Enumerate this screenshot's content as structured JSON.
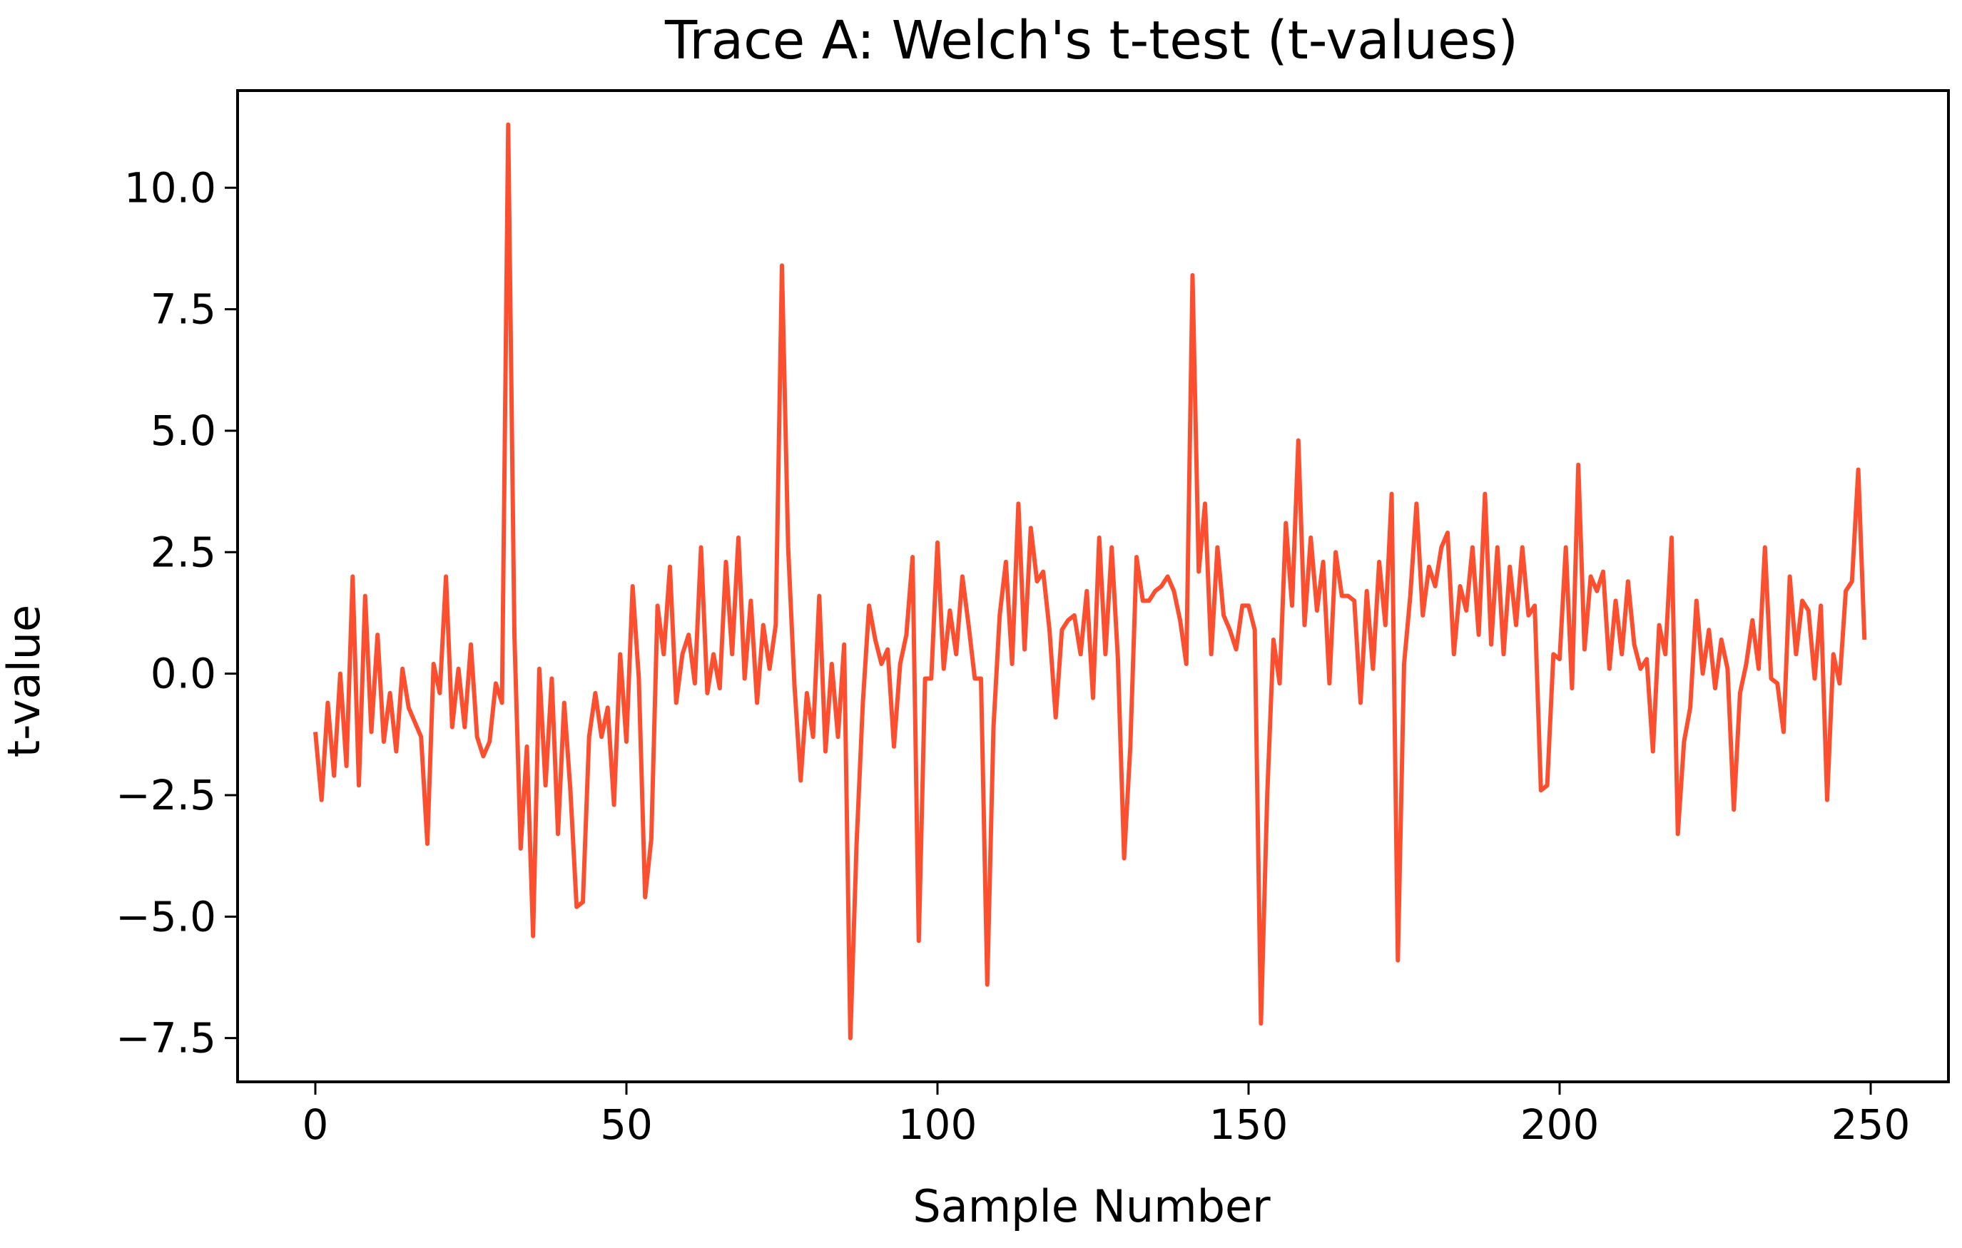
{
  "chart_data": {
    "type": "line",
    "title": "Trace A: Welch's t-test (t-values)",
    "xlabel": "Sample Number",
    "ylabel": "t-value",
    "xlim": [
      -12.5,
      262.5
    ],
    "ylim": [
      -8.4,
      12.0
    ],
    "xticks": [
      0,
      50,
      100,
      150,
      200,
      250
    ],
    "xtick_labels": [
      "0",
      "50",
      "100",
      "150",
      "200",
      "250"
    ],
    "yticks": [
      -7.5,
      -5.0,
      -2.5,
      0.0,
      2.5,
      5.0,
      7.5,
      10.0
    ],
    "ytick_labels": [
      "−7.5",
      "−5.0",
      "−2.5",
      "0.0",
      "2.5",
      "5.0",
      "7.5",
      "10.0"
    ],
    "grid": false,
    "series": [
      {
        "color": "#fc4f30",
        "x": [
          0,
          1,
          2,
          3,
          4,
          5,
          6,
          7,
          8,
          9,
          10,
          11,
          12,
          13,
          14,
          15,
          16,
          17,
          18,
          19,
          20,
          21,
          22,
          23,
          24,
          25,
          26,
          27,
          28,
          29,
          30,
          31,
          32,
          33,
          34,
          35,
          36,
          37,
          38,
          39,
          40,
          41,
          42,
          43,
          44,
          45,
          46,
          47,
          48,
          49,
          50,
          51,
          52,
          53,
          54,
          55,
          56,
          57,
          58,
          59,
          60,
          61,
          62,
          63,
          64,
          65,
          66,
          67,
          68,
          69,
          70,
          71,
          72,
          73,
          74,
          75,
          76,
          77,
          78,
          79,
          80,
          81,
          82,
          83,
          84,
          85,
          86,
          87,
          88,
          89,
          90,
          91,
          92,
          93,
          94,
          95,
          96,
          97,
          98,
          99,
          100,
          101,
          102,
          103,
          104,
          105,
          106,
          107,
          108,
          109,
          110,
          111,
          112,
          113,
          114,
          115,
          116,
          117,
          118,
          119,
          120,
          121,
          122,
          123,
          124,
          125,
          126,
          127,
          128,
          129,
          130,
          131,
          132,
          133,
          134,
          135,
          136,
          137,
          138,
          139,
          140,
          141,
          142,
          143,
          144,
          145,
          146,
          147,
          148,
          149,
          150,
          151,
          152,
          153,
          154,
          155,
          156,
          157,
          158,
          159,
          160,
          161,
          162,
          163,
          164,
          165,
          166,
          167,
          168,
          169,
          170,
          171,
          172,
          173,
          174,
          175,
          176,
          177,
          178,
          179,
          180,
          181,
          182,
          183,
          184,
          185,
          186,
          187,
          188,
          189,
          190,
          191,
          192,
          193,
          194,
          195,
          196,
          197,
          198,
          199,
          200,
          201,
          202,
          203,
          204,
          205,
          206,
          207,
          208,
          209,
          210,
          211,
          212,
          213,
          214,
          215,
          216,
          217,
          218,
          219,
          220,
          221,
          222,
          223,
          224,
          225,
          226,
          227,
          228,
          229,
          230,
          231,
          232,
          233,
          234,
          235,
          236,
          237,
          238,
          239,
          240,
          241,
          242,
          243,
          244,
          245,
          246,
          247,
          248,
          249
        ],
        "values": [
          -1.2,
          -2.6,
          -0.6,
          -2.1,
          0.0,
          -1.9,
          2.0,
          -2.3,
          1.6,
          -1.2,
          0.8,
          -1.4,
          -0.4,
          -1.6,
          0.1,
          -0.7,
          -1.0,
          -1.3,
          -3.5,
          0.2,
          -0.4,
          2.0,
          -1.1,
          0.1,
          -1.1,
          0.6,
          -1.3,
          -1.7,
          -1.4,
          -0.2,
          -0.6,
          11.3,
          0.8,
          -3.6,
          -1.5,
          -5.4,
          0.1,
          -2.3,
          -0.1,
          -3.3,
          -0.6,
          -2.4,
          -4.8,
          -4.7,
          -1.3,
          -0.4,
          -1.3,
          -0.7,
          -2.7,
          0.4,
          -1.4,
          1.8,
          -0.1,
          -4.6,
          -3.4,
          1.4,
          0.4,
          2.2,
          -0.6,
          0.4,
          0.8,
          -0.2,
          2.6,
          -0.4,
          0.4,
          -0.3,
          2.3,
          0.4,
          2.8,
          -0.1,
          1.5,
          -0.6,
          1.0,
          0.1,
          1.0,
          8.4,
          2.6,
          -0.2,
          -2.2,
          -0.4,
          -1.3,
          1.6,
          -1.6,
          0.2,
          -1.3,
          0.6,
          -7.5,
          -3.5,
          -0.6,
          1.4,
          0.7,
          0.2,
          0.5,
          -1.5,
          0.2,
          0.8,
          2.4,
          -5.5,
          -0.1,
          -0.1,
          2.7,
          0.1,
          1.3,
          0.4,
          2.0,
          1.0,
          -0.1,
          -0.1,
          -6.4,
          -1.1,
          1.2,
          2.3,
          0.2,
          3.5,
          0.5,
          3.0,
          1.9,
          2.1,
          0.9,
          -0.9,
          0.9,
          1.1,
          1.2,
          0.4,
          1.7,
          -0.5,
          2.8,
          0.4,
          2.6,
          0.3,
          -3.8,
          -1.5,
          2.4,
          1.5,
          1.5,
          1.7,
          1.8,
          2.0,
          1.7,
          1.1,
          0.2,
          8.2,
          2.1,
          3.5,
          0.4,
          2.6,
          1.2,
          0.9,
          0.5,
          1.4,
          1.4,
          0.9,
          -7.2,
          -2.5,
          0.7,
          -0.2,
          3.1,
          1.4,
          4.8,
          1.0,
          2.8,
          1.3,
          2.3,
          -0.2,
          2.5,
          1.6,
          1.6,
          1.5,
          -0.6,
          1.7,
          0.1,
          2.3,
          1.0,
          3.7,
          -5.9,
          0.2,
          1.6,
          3.5,
          1.2,
          2.2,
          1.8,
          2.6,
          2.9,
          0.4,
          1.8,
          1.3,
          2.6,
          0.8,
          3.7,
          0.6,
          2.6,
          0.4,
          2.2,
          1.0,
          2.6,
          1.2,
          1.4,
          -2.4,
          -2.3,
          0.4,
          0.3,
          2.6,
          -0.3,
          4.3,
          0.5,
          2.0,
          1.7,
          2.1,
          0.1,
          1.5,
          0.4,
          1.9,
          0.6,
          0.1,
          0.3,
          -1.6,
          1.0,
          0.4,
          2.8,
          -3.3,
          -1.4,
          -0.7,
          1.5,
          0.0,
          0.9,
          -0.3,
          0.7,
          0.1,
          -2.8,
          -0.4,
          0.2,
          1.1,
          0.1,
          2.6,
          -0.1,
          -0.2,
          -1.2,
          2.0,
          0.4,
          1.5,
          1.3,
          -0.1,
          1.4,
          -2.6,
          0.4,
          -0.2,
          1.7,
          1.9,
          4.2,
          0.7
        ]
      }
    ]
  }
}
